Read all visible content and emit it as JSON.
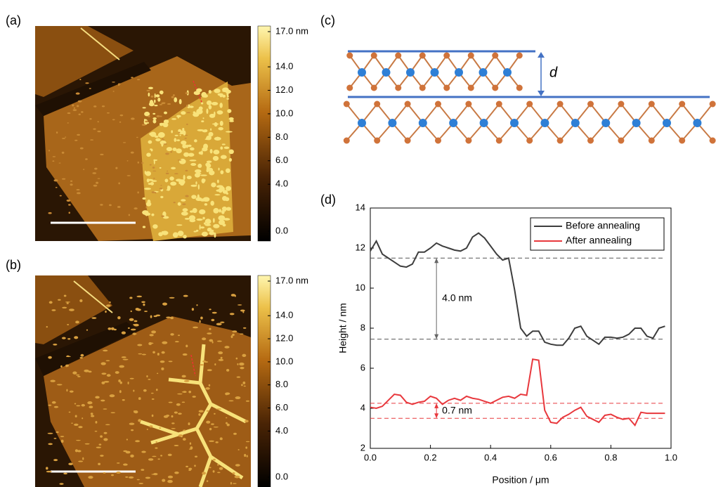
{
  "panels": {
    "a": "(a)",
    "b": "(b)",
    "c": "(c)",
    "d": "(d)"
  },
  "colorbar": {
    "lim": [
      0,
      17
    ],
    "ticks": [
      {
        "value": 17,
        "label": "17.0 nm"
      },
      {
        "value": 14,
        "label": "14.0"
      },
      {
        "value": 12,
        "label": "12.0"
      },
      {
        "value": 10,
        "label": "10.0"
      },
      {
        "value": 8,
        "label": "8.0"
      },
      {
        "value": 6,
        "label": "6.0"
      },
      {
        "value": 4,
        "label": "4.0"
      },
      {
        "value": 0,
        "label": "0.0"
      }
    ]
  },
  "diagram": {
    "label": "d"
  },
  "chart_data": {
    "type": "line",
    "x": [
      0,
      0.02,
      0.04,
      0.06,
      0.08,
      0.1,
      0.12,
      0.14,
      0.16,
      0.18,
      0.2,
      0.22,
      0.24,
      0.26,
      0.28,
      0.3,
      0.32,
      0.34,
      0.36,
      0.38,
      0.4,
      0.42,
      0.44,
      0.46,
      0.48,
      0.5,
      0.52,
      0.54,
      0.56,
      0.58,
      0.6,
      0.62,
      0.64,
      0.66,
      0.68,
      0.7,
      0.72,
      0.74,
      0.76,
      0.78,
      0.8,
      0.82,
      0.84,
      0.86,
      0.88,
      0.9,
      0.92,
      0.94,
      0.96,
      0.98
    ],
    "series": [
      {
        "name": "Before annealing",
        "color": "#3d3d3d",
        "values": [
          11.85,
          12.35,
          11.7,
          11.5,
          11.3,
          11.1,
          11.05,
          11.2,
          11.8,
          11.8,
          12.0,
          12.25,
          12.1,
          12.0,
          11.9,
          11.85,
          12.0,
          12.55,
          12.75,
          12.5,
          12.1,
          11.7,
          11.4,
          11.5,
          9.9,
          8.0,
          7.6,
          7.85,
          7.85,
          7.3,
          7.2,
          7.15,
          7.15,
          7.5,
          8.0,
          8.1,
          7.6,
          7.4,
          7.2,
          7.55,
          7.55,
          7.5,
          7.55,
          7.7,
          8.0,
          8.0,
          7.6,
          7.5,
          8.0,
          8.1
        ]
      },
      {
        "name": "After annealing",
        "color": "#e8383d",
        "values": [
          4.05,
          4.0,
          4.1,
          4.4,
          4.7,
          4.65,
          4.3,
          4.2,
          4.3,
          4.35,
          4.6,
          4.5,
          4.2,
          4.4,
          4.5,
          4.4,
          4.6,
          4.5,
          4.45,
          4.35,
          4.25,
          4.4,
          4.55,
          4.6,
          4.5,
          4.7,
          4.65,
          6.45,
          6.4,
          3.9,
          3.3,
          3.25,
          3.55,
          3.7,
          3.9,
          4.05,
          3.6,
          3.45,
          3.3,
          3.65,
          3.7,
          3.55,
          3.45,
          3.5,
          3.15,
          3.8,
          3.75,
          3.75,
          3.75,
          3.75
        ]
      }
    ],
    "xlim": [
      0,
      1
    ],
    "ylim": [
      2,
      14
    ],
    "xticks": [
      {
        "value": 0,
        "label": "0.0"
      },
      0.2,
      0.4,
      0.6,
      0.8,
      {
        "value": 1,
        "label": "1.0"
      }
    ],
    "yticks": [
      2,
      4,
      6,
      8,
      10,
      12,
      14
    ],
    "xlabel": "Position / μm",
    "ylabel": "Height / nm",
    "legend": "upper right",
    "reference_lines": [
      {
        "value": 11.5,
        "color": "#555555"
      },
      {
        "value": 7.45,
        "color": "#555555"
      },
      {
        "value": 4.25,
        "color": "#e8383d"
      },
      {
        "value": 3.5,
        "color": "#e8383d"
      }
    ],
    "annotations": [
      {
        "text": "4.0 nm",
        "x": 0.22,
        "y": [
          7.45,
          11.5
        ],
        "color": "#666666"
      },
      {
        "text": "0.7 nm",
        "x": 0.22,
        "y": [
          3.5,
          4.25
        ],
        "color": "#e8383d"
      }
    ]
  }
}
